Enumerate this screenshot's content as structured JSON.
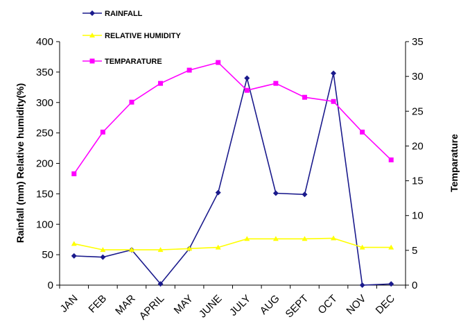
{
  "chart_data": {
    "type": "line",
    "categories": [
      "JAN",
      "FEB",
      "MAR",
      "APRIL",
      "MAY",
      "JUNE",
      "JULY",
      "AUG",
      "SEPT",
      "OCT",
      "NOV",
      "DEC"
    ],
    "series": [
      {
        "name": "RAINFALL",
        "axis": "left",
        "color": "#1a1a8c",
        "marker": "diamond",
        "values": [
          48,
          46,
          58,
          2,
          60,
          152,
          340,
          151,
          149,
          348,
          0,
          2
        ]
      },
      {
        "name": "RELATIVE HUMIDITY",
        "axis": "left",
        "color": "#ffff00",
        "marker": "triangle",
        "values": [
          68,
          58,
          58,
          58,
          60,
          62,
          76,
          76,
          76,
          77,
          62,
          62
        ]
      },
      {
        "name": "TEMPARATURE",
        "axis": "right",
        "color": "#ff00ff",
        "marker": "square",
        "values": [
          16,
          22,
          26.3,
          29,
          30.9,
          32,
          28,
          29,
          27,
          26.4,
          22,
          18
        ]
      }
    ],
    "ylabel": "Rainfall (mm) Relative humidity(%)",
    "ylabel_right": "Temparature",
    "ylim": [
      0,
      400
    ],
    "ylim_right": [
      0,
      35
    ],
    "yticks": [
      "0",
      "50",
      "100",
      "150",
      "200",
      "250",
      "300",
      "350",
      "400"
    ],
    "yticks_right": [
      "0",
      "5",
      "10",
      "15",
      "20",
      "25",
      "30",
      "35"
    ],
    "grid": false,
    "legend_position": "top-left"
  }
}
